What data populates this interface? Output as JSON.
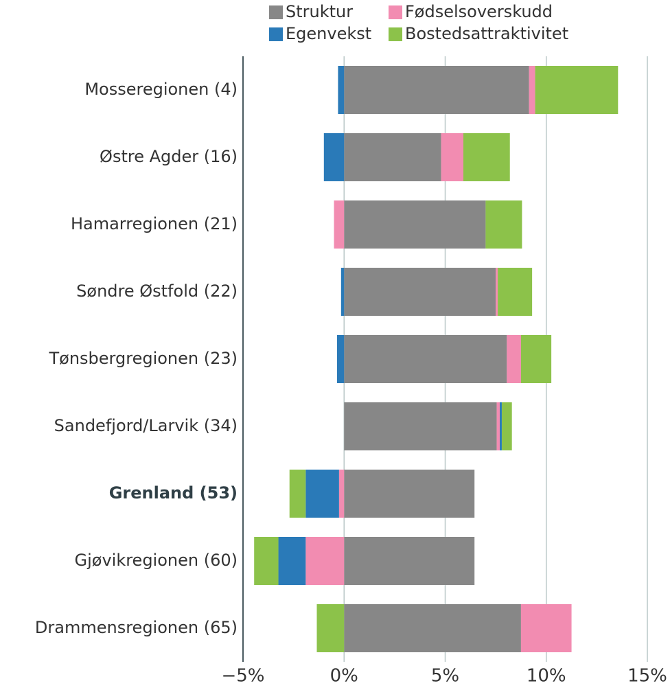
{
  "chart_data": {
    "type": "stacked-bar-horizontal",
    "categories": [
      "Mosseregionen (4)",
      "Østre Agder (16)",
      "Hamarregionen (21)",
      "Søndre Østfold (22)",
      "Tønsbergregionen (23)",
      "Sandefjord/Larvik (34)",
      "Grenland (53)",
      "Gjøvikregionen (60)",
      "Drammensregionen (65)"
    ],
    "highlight_index": 6,
    "series": [
      {
        "name": "Struktur",
        "color": "#878787",
        "values": [
          9.15,
          4.8,
          7.0,
          7.5,
          8.05,
          7.55,
          6.45,
          6.45,
          8.75
        ]
      },
      {
        "name": "Fødselsoverskudd",
        "color": "#f28cb1",
        "values": [
          0.3,
          1.1,
          -0.5,
          0.1,
          0.7,
          0.15,
          -0.25,
          -1.9,
          2.5
        ]
      },
      {
        "name": "Egenvekst",
        "color": "#2a7ab8",
        "values": [
          -0.3,
          -1.0,
          0,
          -0.15,
          -0.35,
          0.1,
          -1.65,
          -1.35,
          0
        ]
      },
      {
        "name": "Bostedsattraktivitet",
        "color": "#8cc24a",
        "values": [
          4.1,
          2.3,
          1.8,
          1.7,
          1.5,
          0.5,
          -0.8,
          -1.2,
          -1.35
        ]
      }
    ],
    "xlim": [
      -5,
      15
    ],
    "xticks": [
      {
        "value": -5,
        "label": "−5%"
      },
      {
        "value": 0,
        "label": "0%"
      },
      {
        "value": 5,
        "label": "5%"
      },
      {
        "value": 10,
        "label": "10%"
      },
      {
        "value": 15,
        "label": "15%"
      }
    ],
    "grid": true,
    "legend": "top"
  }
}
